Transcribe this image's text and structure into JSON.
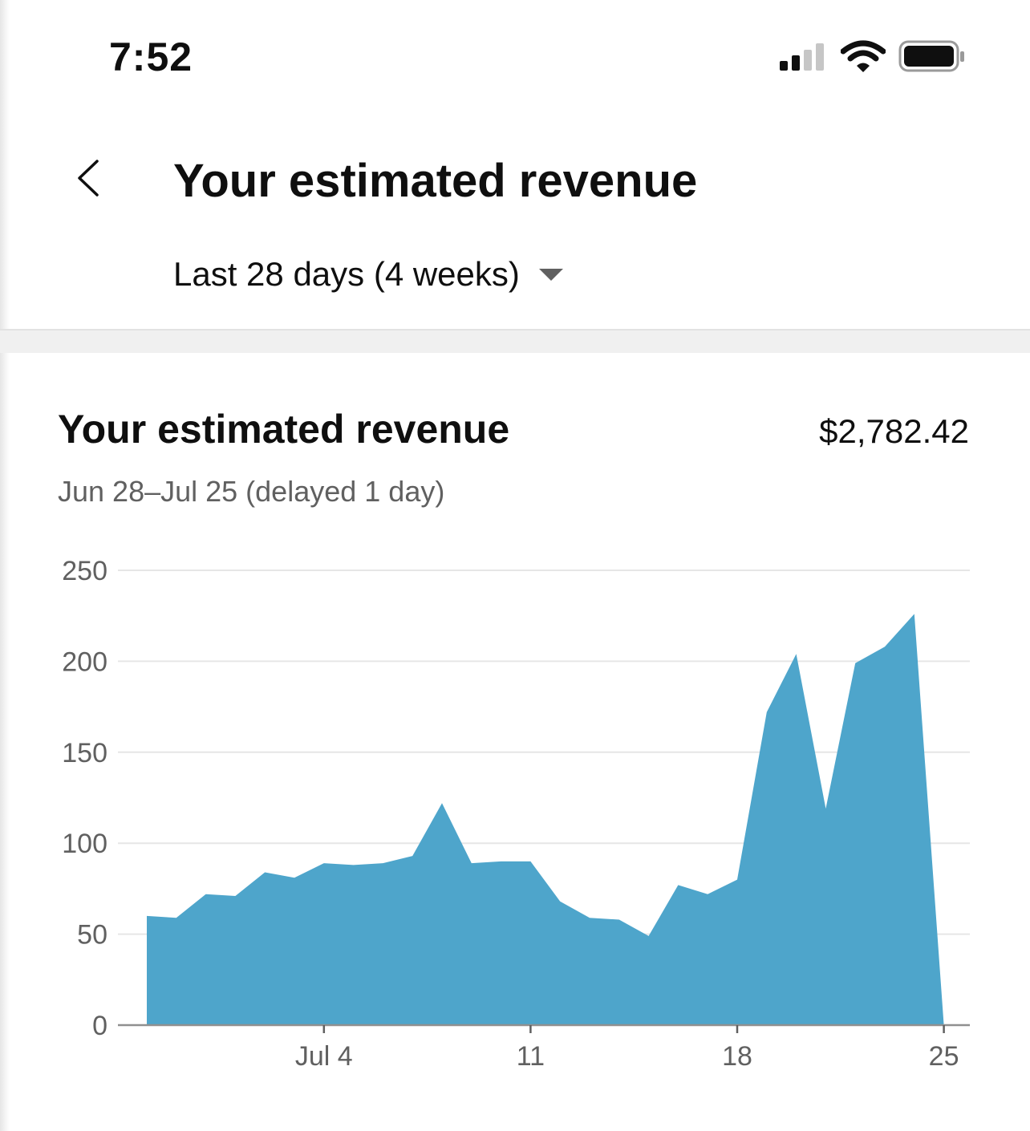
{
  "status_bar": {
    "time": "7:52",
    "icons": [
      "cellular-signal-icon",
      "wifi-icon",
      "battery-icon"
    ]
  },
  "header": {
    "back_icon": "chevron-left-icon",
    "title": "Your estimated revenue",
    "range_selector": {
      "label": "Last 28 days (4 weeks)",
      "icon": "caret-down-icon"
    }
  },
  "card": {
    "title": "Your estimated revenue",
    "total": "$2,782.42",
    "subtitle": "Jun 28–Jul 25 (delayed 1 day)"
  },
  "colors": {
    "area_fill": "#4ea5cb",
    "grid": "#e6e6e6",
    "axis_text": "#606060"
  },
  "chart_data": {
    "type": "area",
    "x": [
      "Jun 28",
      "Jun 29",
      "Jun 30",
      "Jul 1",
      "Jul 2",
      "Jul 3",
      "Jul 4",
      "Jul 5",
      "Jul 6",
      "Jul 7",
      "Jul 8",
      "Jul 9",
      "Jul 10",
      "Jul 11",
      "Jul 12",
      "Jul 13",
      "Jul 14",
      "Jul 15",
      "Jul 16",
      "Jul 17",
      "Jul 18",
      "Jul 19",
      "Jul 20",
      "Jul 21",
      "Jul 22",
      "Jul 23",
      "Jul 24",
      "Jul 25"
    ],
    "series": [
      {
        "values": [
          60,
          59,
          72,
          71,
          84,
          81,
          89,
          88,
          89,
          93,
          122,
          89,
          90,
          90,
          68,
          59,
          58,
          49,
          77,
          72,
          80,
          172,
          204,
          119,
          199,
          208,
          226,
          0
        ]
      }
    ],
    "ylim": [
      0,
      250
    ],
    "y_ticks": [
      "0",
      "50",
      "100",
      "150",
      "200",
      "250"
    ],
    "y_tick_values": [
      0,
      50,
      100,
      150,
      200,
      250
    ],
    "x_ticks": [
      {
        "label": "Jul 4",
        "x": "Jul 4"
      },
      {
        "label": "11",
        "x": "Jul 11"
      },
      {
        "label": "18",
        "x": "Jul 18"
      },
      {
        "label": "25",
        "x": "Jul 25"
      }
    ],
    "grid": true,
    "title": "",
    "xlabel": "",
    "ylabel": ""
  }
}
